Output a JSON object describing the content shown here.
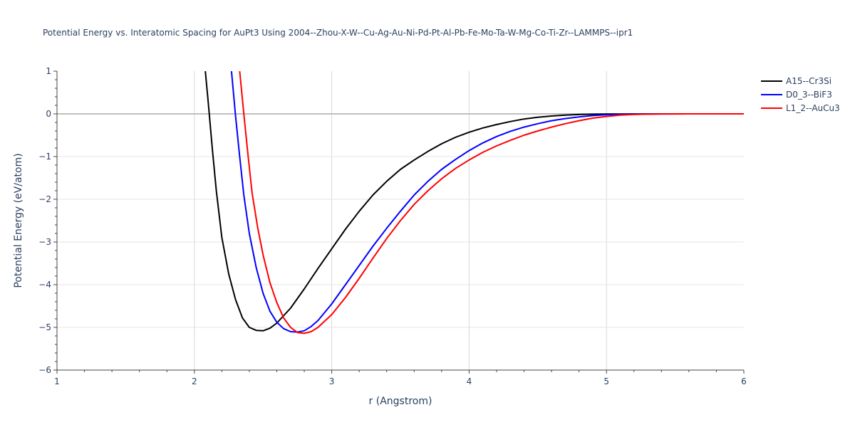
{
  "chart_data": {
    "type": "line",
    "title": "Potential Energy vs. Interatomic Spacing for AuPt3 Using 2004--Zhou-X-W--Cu-Ag-Au-Ni-Pd-Pt-Al-Pb-Fe-Mo-Ta-W-Mg-Co-Ti-Zr--LAMMPS--ipr1",
    "xlabel": "r (Angstrom)",
    "ylabel": "Potential Energy (eV/atom)",
    "xlim": [
      1,
      6
    ],
    "ylim": [
      -6,
      1
    ],
    "xticks": [
      1,
      2,
      3,
      4,
      5,
      6
    ],
    "xtick_labels": [
      "1",
      "2",
      "3",
      "4",
      "5",
      "6"
    ],
    "yticks": [
      1,
      0,
      -1,
      -2,
      -3,
      -4,
      -5,
      -6
    ],
    "ytick_labels": [
      "1",
      "0",
      "−1",
      "−2",
      "−3",
      "−4",
      "−5",
      "−6"
    ],
    "grid": true,
    "legend_position": "top-right",
    "series": [
      {
        "name": "A15--Cr3Si",
        "color": "#000000",
        "x": [
          2.08,
          2.1,
          2.13,
          2.16,
          2.2,
          2.25,
          2.3,
          2.35,
          2.4,
          2.45,
          2.5,
          2.55,
          2.6,
          2.7,
          2.8,
          2.9,
          3.0,
          3.1,
          3.2,
          3.3,
          3.4,
          3.5,
          3.6,
          3.7,
          3.8,
          3.9,
          4.0,
          4.1,
          4.2,
          4.3,
          4.4,
          4.5,
          4.6,
          4.7,
          4.8,
          4.9,
          5.0,
          5.2,
          5.4,
          5.6,
          5.8,
          6.0
        ],
        "y": [
          1.0,
          0.3,
          -0.8,
          -1.8,
          -2.9,
          -3.75,
          -4.35,
          -4.78,
          -5.0,
          -5.07,
          -5.08,
          -5.02,
          -4.9,
          -4.55,
          -4.1,
          -3.62,
          -3.16,
          -2.7,
          -2.28,
          -1.9,
          -1.58,
          -1.3,
          -1.08,
          -0.88,
          -0.7,
          -0.55,
          -0.43,
          -0.33,
          -0.25,
          -0.18,
          -0.12,
          -0.08,
          -0.05,
          -0.03,
          -0.015,
          -0.008,
          -0.004,
          -0.001,
          0.0,
          0.0,
          0.0,
          0.0
        ]
      },
      {
        "name": "D0_3--BiF3",
        "color": "#0000ff",
        "x": [
          2.27,
          2.3,
          2.33,
          2.36,
          2.4,
          2.45,
          2.5,
          2.55,
          2.6,
          2.65,
          2.7,
          2.75,
          2.8,
          2.85,
          2.9,
          3.0,
          3.1,
          3.2,
          3.3,
          3.4,
          3.5,
          3.6,
          3.7,
          3.8,
          3.9,
          4.0,
          4.1,
          4.2,
          4.3,
          4.4,
          4.5,
          4.6,
          4.7,
          4.8,
          4.9,
          5.0,
          5.1,
          5.2,
          5.4,
          5.6,
          5.8,
          6.0
        ],
        "y": [
          1.0,
          -0.05,
          -1.0,
          -1.9,
          -2.8,
          -3.6,
          -4.2,
          -4.62,
          -4.88,
          -5.03,
          -5.1,
          -5.11,
          -5.08,
          -4.98,
          -4.84,
          -4.45,
          -4.0,
          -3.55,
          -3.1,
          -2.68,
          -2.28,
          -1.9,
          -1.58,
          -1.3,
          -1.07,
          -0.86,
          -0.68,
          -0.53,
          -0.41,
          -0.31,
          -0.23,
          -0.16,
          -0.11,
          -0.07,
          -0.04,
          -0.02,
          -0.01,
          -0.005,
          -0.001,
          0.0,
          0.0,
          0.0
        ]
      },
      {
        "name": "L1_2--AuCu3",
        "color": "#ff0000",
        "x": [
          2.33,
          2.36,
          2.39,
          2.42,
          2.46,
          2.5,
          2.55,
          2.6,
          2.65,
          2.7,
          2.75,
          2.8,
          2.85,
          2.9,
          3.0,
          3.1,
          3.2,
          3.3,
          3.4,
          3.5,
          3.6,
          3.7,
          3.8,
          3.9,
          4.0,
          4.1,
          4.2,
          4.3,
          4.4,
          4.5,
          4.6,
          4.7,
          4.8,
          4.9,
          5.0,
          5.1,
          5.2,
          5.3,
          5.4,
          5.6,
          5.8,
          6.0
        ],
        "y": [
          1.0,
          0.0,
          -0.95,
          -1.85,
          -2.65,
          -3.3,
          -3.95,
          -4.42,
          -4.78,
          -5.0,
          -5.12,
          -5.14,
          -5.1,
          -5.0,
          -4.7,
          -4.3,
          -3.85,
          -3.38,
          -2.92,
          -2.5,
          -2.12,
          -1.8,
          -1.52,
          -1.28,
          -1.08,
          -0.9,
          -0.75,
          -0.62,
          -0.5,
          -0.4,
          -0.31,
          -0.23,
          -0.16,
          -0.1,
          -0.06,
          -0.03,
          -0.015,
          -0.006,
          -0.002,
          0.0,
          0.0,
          0.0
        ]
      }
    ]
  }
}
